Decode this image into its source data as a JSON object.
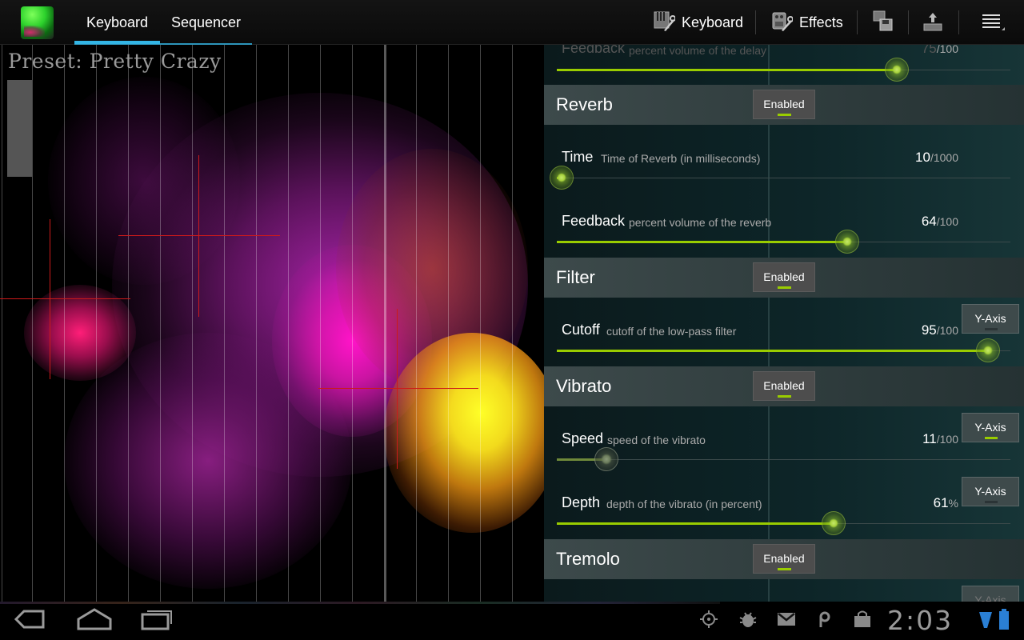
{
  "actionbar": {
    "tabs": [
      {
        "label": "Keyboard",
        "selected": true
      },
      {
        "label": "Sequencer",
        "selected": false
      }
    ],
    "actions": {
      "keyboard_label": "Keyboard",
      "effects_label": "Effects"
    },
    "icons": {
      "app": "app-icon",
      "keyboard": "keyboard-wrench-icon",
      "effects": "pedal-wrench-icon",
      "save": "save-preset-icon",
      "upload": "upload-icon",
      "overflow": "overflow-menu-icon"
    }
  },
  "canvas": {
    "preset_label": "Preset: Pretty Crazy"
  },
  "effects": {
    "top_partial": {
      "name": "Feedback",
      "desc": "percent volume of the delay",
      "value": "75",
      "max": "/100",
      "level": 0.75
    },
    "sections": [
      {
        "title": "Reverb",
        "toggle": "Enabled",
        "params": [
          {
            "name": "Time",
            "desc": "Time of Reverb (in milliseconds)",
            "value": "10",
            "max": "/1000",
            "level": 0.01
          },
          {
            "name": "Feedback",
            "desc": "percent volume of the reverb",
            "value": "64",
            "max": "/100",
            "level": 0.64
          }
        ]
      },
      {
        "title": "Filter",
        "toggle": "Enabled",
        "params": [
          {
            "name": "Cutoff",
            "desc": "cutoff of the low-pass filter",
            "value": "95",
            "max": "/100",
            "level": 0.95,
            "axis": "Y-Axis"
          }
        ]
      },
      {
        "title": "Vibrato",
        "toggle": "Enabled",
        "params": [
          {
            "name": "Speed",
            "desc": "speed of the vibrato",
            "value": "11",
            "max": "/100",
            "level": 0.11,
            "axis": "Y-Axis"
          },
          {
            "name": "Depth",
            "desc": "depth of the vibrato (in percent)",
            "value": "61",
            "max": "%",
            "level": 0.61,
            "axis": "Y-Axis"
          }
        ]
      },
      {
        "title": "Tremolo",
        "toggle": "Enabled",
        "params": []
      }
    ],
    "bottom_partial_axis": "Y-Axis"
  },
  "system": {
    "clock": "2:03",
    "icons": [
      "back-icon",
      "home-icon",
      "recent-apps-icon",
      "gps-icon",
      "debug-icon",
      "gmail-icon",
      "podcast-icon",
      "store-icon",
      "signal-icon",
      "battery-icon"
    ]
  },
  "colors": {
    "accent": "#33b5e5",
    "slider": "#99cc00",
    "crosshair": "#cc1a1a"
  }
}
